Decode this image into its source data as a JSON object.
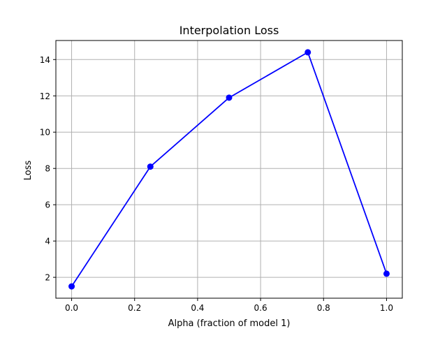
{
  "chart_data": {
    "type": "line",
    "title": "Interpolation Loss",
    "xlabel": "Alpha (fraction of model 1)",
    "ylabel": "Loss",
    "x": [
      0.0,
      0.25,
      0.5,
      0.75,
      1.0
    ],
    "series": [
      {
        "values": [
          1.5,
          8.1,
          11.9,
          14.4,
          2.2
        ],
        "color": "#0000ff",
        "marker": "circle"
      }
    ],
    "xlim": [
      -0.05,
      1.05
    ],
    "ylim": [
      0.85,
      15.05
    ],
    "xticks": [
      0.0,
      0.2,
      0.4,
      0.6,
      0.8,
      1.0
    ],
    "xtick_labels": [
      "0.0",
      "0.2",
      "0.4",
      "0.6",
      "0.8",
      "1.0"
    ],
    "yticks": [
      2,
      4,
      6,
      8,
      10,
      12,
      14
    ],
    "ytick_labels": [
      "2",
      "4",
      "6",
      "8",
      "10",
      "12",
      "14"
    ],
    "grid": true,
    "grid_color": "#b0b0b0",
    "axis_color": "#000000"
  }
}
